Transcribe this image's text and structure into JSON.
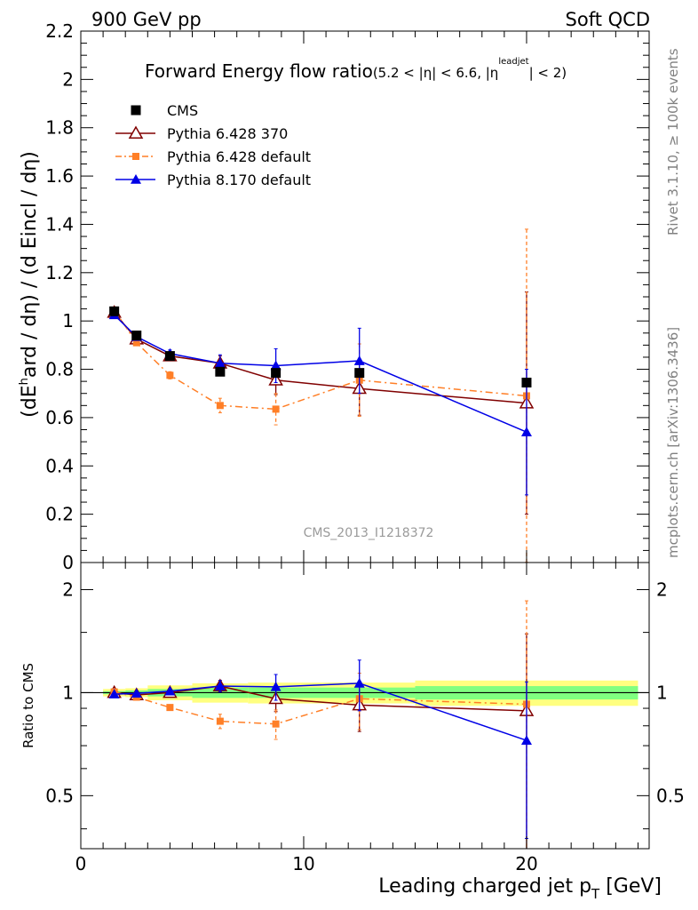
{
  "header": {
    "left": "900 GeV pp",
    "right": "Soft QCD"
  },
  "side_texts": {
    "rivet": "Rivet 3.1.10, ≥ 100k events",
    "mcplots": "mcplots.cern.ch [arXiv:1306.3436]"
  },
  "chart_data": [
    {
      "type": "scatter",
      "panel": "main",
      "title_main": "Forward Energy flow ratio",
      "title_cond": "(5.2 < |η| < 6.6, |η",
      "title_sup": "leadjet",
      "title_end": "| < 2)",
      "ylabel_part1": "(dE",
      "ylabel_sup": "h",
      "ylabel_part2": "ard / dη) / (d E",
      "ylabel_part3": "incl / dη)",
      "xlim": [
        0,
        25.5
      ],
      "ylim": [
        0,
        2.2
      ],
      "yticks": [
        0,
        0.2,
        0.4,
        0.6,
        0.8,
        1,
        1.2,
        1.4,
        1.6,
        1.8,
        2,
        2.2
      ],
      "ytick_labels": [
        "0",
        "0.2",
        "0.4",
        "0.6",
        "0.8",
        "1",
        "1.2",
        "1.4",
        "1.6",
        "1.8",
        "2",
        "2.2"
      ],
      "watermark": "CMS_2013_I1218372",
      "legend_position": "top-left",
      "series": [
        {
          "name": "CMS",
          "color": "#000000",
          "marker": "square-filled",
          "line": "none",
          "x": [
            1.5,
            2.5,
            4.0,
            6.25,
            8.75,
            12.5,
            20.0
          ],
          "y": [
            1.04,
            0.94,
            0.855,
            0.79,
            0.785,
            0.785,
            0.745
          ],
          "err": [
            0.01,
            0.01,
            0.01,
            0.01,
            0.01,
            0.01,
            0.01
          ]
        },
        {
          "name": "Pythia 6.428 370",
          "color": "#800000",
          "marker": "triangle-open",
          "line": "solid",
          "x": [
            1.5,
            2.5,
            4.0,
            6.25,
            8.75,
            12.5,
            20.0
          ],
          "y": [
            1.035,
            0.925,
            0.855,
            0.825,
            0.755,
            0.72,
            0.66
          ],
          "err": [
            0.01,
            0.01,
            0.015,
            0.03,
            0.06,
            0.11,
            0.46
          ]
        },
        {
          "name": "Pythia 6.428 default",
          "color": "#ff7f27",
          "marker": "square-filled-small",
          "line": "dashdot",
          "x": [
            1.5,
            2.5,
            4.0,
            6.25,
            8.75,
            12.5,
            20.0
          ],
          "y": [
            1.045,
            0.91,
            0.775,
            0.65,
            0.635,
            0.755,
            0.69
          ],
          "err": [
            0.01,
            0.01,
            0.015,
            0.03,
            0.065,
            0.15,
            0.69
          ]
        },
        {
          "name": "Pythia 8.170 default",
          "color": "#0000e6",
          "marker": "triangle-filled",
          "line": "solid",
          "x": [
            1.5,
            2.5,
            4.0,
            6.25,
            8.75,
            12.5,
            20.0
          ],
          "y": [
            1.025,
            0.935,
            0.865,
            0.825,
            0.815,
            0.835,
            0.54
          ],
          "err": [
            0.01,
            0.01,
            0.015,
            0.035,
            0.07,
            0.135,
            0.26
          ]
        }
      ]
    },
    {
      "type": "scatter",
      "panel": "ratio",
      "ylabel": "Ratio to CMS",
      "xlabel": "Leading charged jet p",
      "xlabel_sub": "T",
      "xlabel_unit": " [GeV]",
      "xlim": [
        0,
        25.5
      ],
      "ylim": [
        0.35,
        2.4
      ],
      "yscale": "log",
      "xticks": [
        0,
        10,
        20
      ],
      "xtick_labels": [
        "0",
        "10",
        "20"
      ],
      "yticks": [
        0.5,
        1,
        2
      ],
      "ytick_labels": [
        "0.5",
        "1",
        "2"
      ],
      "bands": {
        "x_edges": [
          1,
          2,
          3,
          5,
          7.5,
          10,
          15,
          25
        ],
        "green_half": [
          0.01,
          0.015,
          0.025,
          0.035,
          0.035,
          0.035,
          0.045
        ],
        "yellow_half": [
          0.025,
          0.03,
          0.05,
          0.065,
          0.07,
          0.07,
          0.085
        ]
      },
      "series": [
        {
          "name": "Pythia 6.428 370",
          "color": "#800000",
          "marker": "triangle-open",
          "line": "solid",
          "x": [
            1.5,
            2.5,
            4.0,
            6.25,
            8.75,
            12.5,
            20.0
          ],
          "y": [
            1.0,
            0.985,
            1.0,
            1.045,
            0.96,
            0.92,
            0.885
          ],
          "err": [
            0.01,
            0.01,
            0.015,
            0.04,
            0.08,
            0.15,
            0.6
          ]
        },
        {
          "name": "Pythia 6.428 default",
          "color": "#ff7f27",
          "marker": "square-filled-small",
          "line": "dashdot",
          "x": [
            1.5,
            2.5,
            4.0,
            6.25,
            8.75,
            12.5,
            20.0
          ],
          "y": [
            1.005,
            0.97,
            0.905,
            0.825,
            0.81,
            0.96,
            0.925
          ],
          "err": [
            0.01,
            0.01,
            0.015,
            0.04,
            0.08,
            0.18,
            0.93
          ]
        },
        {
          "name": "Pythia 8.170 default",
          "color": "#0000e6",
          "marker": "triangle-filled",
          "line": "solid",
          "x": [
            1.5,
            2.5,
            4.0,
            6.25,
            8.75,
            12.5,
            20.0
          ],
          "y": [
            0.99,
            0.995,
            1.01,
            1.045,
            1.04,
            1.065,
            0.725
          ],
          "err": [
            0.01,
            0.01,
            0.015,
            0.04,
            0.09,
            0.18,
            0.35
          ]
        }
      ]
    }
  ]
}
